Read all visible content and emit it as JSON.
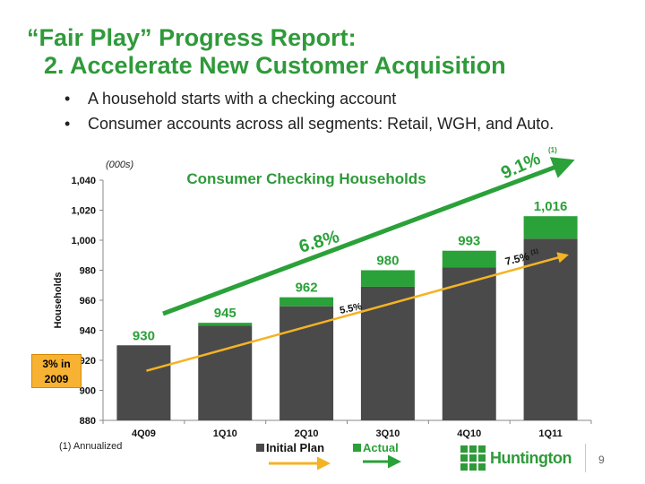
{
  "title_line1": "“Fair Play” Progress Report:",
  "title_line2": "2. Accelerate New Customer Acquisition",
  "bullets": [
    "A household starts with a checking account",
    "Consumer accounts across all segments: Retail, WGH, and Auto."
  ],
  "bullet_char": "•",
  "footnote": "(1) Annualized",
  "logo_text": "Huntington",
  "page_number": "9",
  "callout": "3% in 2009",
  "colors": {
    "brand_green": "#2f9a3a",
    "initial_plan": "#4a4a4a",
    "actual": "#2aa139",
    "plan_arrow": "#f5b324",
    "callout_bg": "#f7b233"
  },
  "chart_data": {
    "type": "bar",
    "title": "Consumer Checking Households",
    "units_label": "(000s)",
    "ylabel": "Households",
    "xlabel": "",
    "ylim": [
      880,
      1040
    ],
    "yticks": [
      "880",
      "900",
      "920",
      "940",
      "960",
      "980",
      "1,000",
      "1,020",
      "1,040"
    ],
    "ytick_values": [
      880,
      900,
      920,
      940,
      960,
      980,
      1000,
      1020,
      1040
    ],
    "categories": [
      "4Q09",
      "1Q10",
      "2Q10",
      "3Q10",
      "4Q10",
      "1Q11"
    ],
    "series": [
      {
        "name": "Initial Plan",
        "values": [
          930,
          943,
          956,
          969,
          982,
          1001
        ]
      },
      {
        "name": "Actual",
        "values": [
          930,
          945,
          962,
          980,
          993,
          1016
        ]
      }
    ],
    "data_labels": [
      "930",
      "945",
      "962",
      "980",
      "993",
      "1,016"
    ],
    "legend": {
      "placement": "bottom",
      "entries": [
        "Initial Plan",
        "Actual"
      ]
    },
    "grid": false,
    "annotations": {
      "actual_growth": "6.8%",
      "actual_growth_annualized": "9.1%",
      "plan_growth": "5.5%",
      "plan_growth_annualized": "7.5%",
      "annualized_mark": "(1)"
    }
  }
}
